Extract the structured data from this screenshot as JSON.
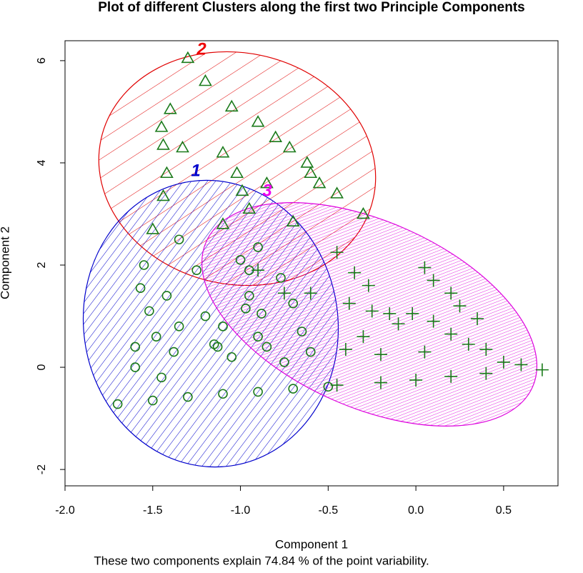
{
  "chart_data": {
    "type": "scatter",
    "title": "Plot of different Clusters along the first two Principle Components",
    "x_label": "Component 1",
    "y_label": "Component 2",
    "subtitle": "These two components explain 74.84 % of the point variability.",
    "xlim": [
      -2.0,
      0.81
    ],
    "ylim": [
      -2.32,
      6.39
    ],
    "xticks": [
      {
        "value": -2,
        "label": "-2.0"
      },
      -1.5,
      {
        "value": -1,
        "label": "-1.0"
      },
      -0.5,
      {
        "value": 0,
        "label": "0.0"
      },
      0.5
    ],
    "yticks": [
      -2,
      0,
      2,
      4,
      6
    ],
    "point_color": "#1a7a1a",
    "series": [
      {
        "name": "1",
        "color": "#0000cc",
        "marker": "circle",
        "x": [
          -1.7,
          -1.55,
          -1.57,
          -1.52,
          -1.48,
          -1.42,
          -1.35,
          -1.25,
          -1.38,
          -1.2,
          -1.1,
          -1.0,
          -0.95,
          -0.9,
          -0.77,
          -0.97,
          -0.88,
          -0.9,
          -1.13,
          -1.05,
          -0.65,
          -0.6,
          -0.75,
          -0.5,
          -0.7,
          -0.9,
          -1.1,
          -1.3,
          -1.5,
          -1.6,
          -1.45,
          -0.95,
          -1.6,
          -1.35,
          -1.15,
          -0.85,
          -0.7
        ],
        "values": [
          -0.72,
          2.0,
          1.55,
          1.1,
          0.6,
          1.4,
          2.5,
          1.9,
          0.3,
          1.0,
          0.8,
          2.1,
          1.9,
          2.35,
          1.75,
          1.15,
          1.05,
          0.6,
          0.4,
          0.2,
          0.7,
          0.3,
          0.1,
          -0.38,
          -0.42,
          -0.48,
          -0.52,
          -0.58,
          -0.65,
          0.0,
          -0.2,
          1.4,
          0.4,
          0.8,
          0.45,
          0.4,
          1.25
        ]
      },
      {
        "name": "2",
        "color": "#ee0000",
        "marker": "triangle",
        "x": [
          -1.3,
          -1.42,
          -1.44,
          -1.5,
          -1.44,
          -1.45,
          -1.4,
          -1.33,
          -1.1,
          -1.02,
          -0.99,
          -1.1,
          -0.9,
          -0.8,
          -0.72,
          -0.62,
          -0.55,
          -0.45,
          -0.3,
          -0.7,
          -0.95,
          -1.2,
          -1.05,
          -0.85,
          -0.6
        ],
        "values": [
          6.05,
          3.8,
          3.35,
          2.7,
          4.35,
          4.7,
          5.05,
          4.3,
          4.2,
          3.8,
          3.45,
          2.8,
          4.8,
          4.5,
          4.3,
          4.0,
          3.6,
          3.4,
          3.0,
          2.85,
          3.1,
          5.6,
          5.1,
          3.6,
          3.8
        ]
      },
      {
        "name": "3",
        "color": "#ee00ee",
        "marker": "plus",
        "x": [
          0.72,
          0.05,
          -0.45,
          -0.35,
          -0.27,
          -0.38,
          -0.25,
          -0.15,
          -0.02,
          0.1,
          0.2,
          0.3,
          0.4,
          0.5,
          0.6,
          -0.3,
          -0.4,
          -0.45,
          -0.2,
          0.0,
          0.2,
          0.4,
          -0.1,
          0.05,
          0.1,
          0.2,
          0.25,
          0.35,
          -0.2,
          -0.6,
          -0.9,
          -0.75
        ],
        "values": [
          -0.05,
          1.95,
          2.25,
          1.85,
          1.6,
          1.25,
          1.1,
          1.05,
          1.05,
          0.9,
          0.65,
          0.45,
          0.35,
          0.1,
          0.05,
          0.6,
          0.35,
          -0.35,
          -0.3,
          -0.25,
          -0.18,
          -0.12,
          0.85,
          0.3,
          1.7,
          1.45,
          1.2,
          0.95,
          0.25,
          1.45,
          1.9,
          1.45
        ]
      }
    ]
  }
}
